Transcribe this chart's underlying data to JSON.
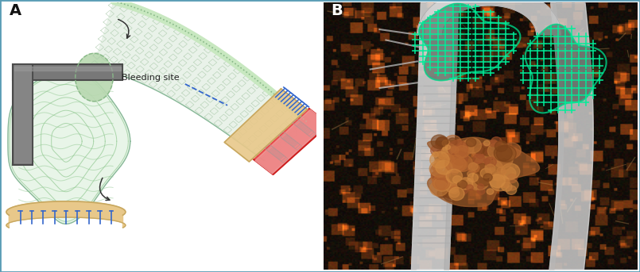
{
  "panel_A_label": "A",
  "panel_B_label": "B",
  "bleeding_site_text": "Bleeding site",
  "fig_width": 8.05,
  "fig_height": 3.43,
  "dpi": 100,
  "border_color": "#5a9db5",
  "border_linewidth": 2.0,
  "background_color": "#ffffff",
  "label_fontsize": 14,
  "label_fontweight": "bold",
  "annotation_fontsize": 8,
  "panel_A_bg": "#ffffff",
  "panel_B_bg": "#050505",
  "clamp_color": "#787878",
  "clamp_dark": "#4a4a4a",
  "clamp_light": "#999999",
  "vessel_fill": "#ddeedd",
  "vessel_edge": "#88b898",
  "mesh_line": "#aaccaa",
  "suture_color": "#3366cc",
  "tan_color": "#e8c88a",
  "tan_edge": "#c8a860",
  "red_cap": "#e84040",
  "red_edge": "#cc2020",
  "pink_fill": "#f0a0a0",
  "arrow_color": "#3366cc",
  "black_arrow": "#333333",
  "cyan_mesh": "#00ee99"
}
